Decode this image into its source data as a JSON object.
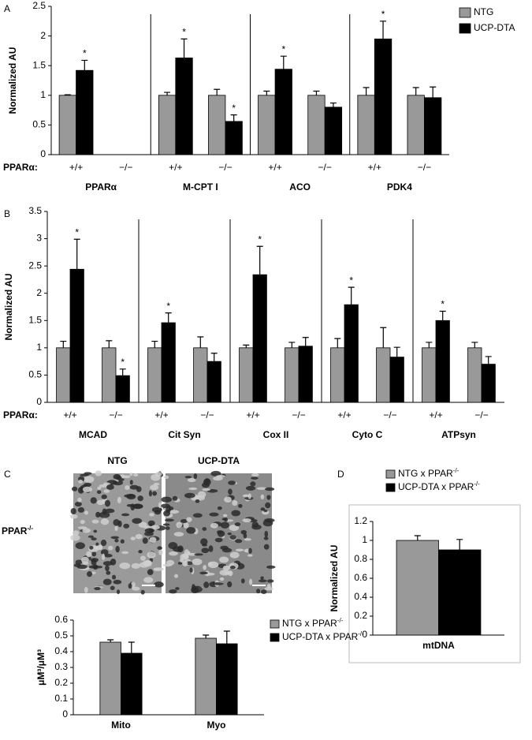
{
  "chart_data": [
    {
      "type": "bar",
      "panel": "A",
      "ylabel": "Normalized AU",
      "ylim": [
        0,
        2.5
      ],
      "yticks": [
        0,
        0.5,
        1,
        1.5,
        2,
        2.5
      ],
      "xlabel_prefix": "PPARα:",
      "categories": [
        "+/+",
        "−/−",
        "+/+",
        "−/−",
        "+/+",
        "−/−",
        "+/+",
        "−/−"
      ],
      "groups": [
        "PPARα",
        "M-CPT I",
        "ACO",
        "PDK4"
      ],
      "legend": "upper right",
      "series": [
        {
          "name": "NTG",
          "color": "#999999",
          "values": [
            1.0,
            null,
            1.0,
            1.0,
            1.0,
            1.0,
            1.0,
            1.0
          ],
          "errors": [
            0.01,
            null,
            0.05,
            0.1,
            0.07,
            0.07,
            0.13,
            0.13
          ],
          "annotations": [
            null,
            null,
            null,
            null,
            null,
            null,
            null,
            null
          ]
        },
        {
          "name": "UCP-DTA",
          "color": "#000000",
          "values": [
            1.42,
            null,
            1.63,
            0.56,
            1.44,
            0.8,
            1.95,
            0.96
          ],
          "errors": [
            0.17,
            null,
            0.32,
            0.11,
            0.22,
            0.07,
            0.3,
            0.18
          ],
          "annotations": [
            "*",
            null,
            "*",
            "*",
            "*",
            null,
            "*",
            null
          ]
        }
      ]
    },
    {
      "type": "bar",
      "panel": "B",
      "ylabel": "Normalized AU",
      "ylim": [
        0,
        3.5
      ],
      "yticks": [
        0,
        0.5,
        1,
        1.5,
        2,
        2.5,
        3,
        3.5
      ],
      "xlabel_prefix": "PPARα:",
      "categories": [
        "+/+",
        "−/−",
        "+/+",
        "−/−",
        "+/+",
        "−/−",
        "+/+",
        "−/−",
        "+/+",
        "−/−"
      ],
      "groups": [
        "MCAD",
        "Cit Syn",
        "Cox II",
        "Cyto C",
        "ATPsyn"
      ],
      "series": [
        {
          "name": "NTG",
          "color": "#999999",
          "values": [
            1.0,
            1.0,
            1.0,
            1.0,
            1.0,
            1.0,
            1.0,
            1.0,
            1.0,
            1.0
          ],
          "errors": [
            0.12,
            0.13,
            0.12,
            0.2,
            0.05,
            0.1,
            0.17,
            0.37,
            0.1,
            0.1
          ],
          "annotations": [
            null,
            null,
            null,
            null,
            null,
            null,
            null,
            null,
            null,
            null
          ]
        },
        {
          "name": "UCP-DTA",
          "color": "#000000",
          "values": [
            2.44,
            0.49,
            1.46,
            0.75,
            2.34,
            1.03,
            1.79,
            0.83,
            1.5,
            0.7
          ],
          "errors": [
            0.55,
            0.12,
            0.18,
            0.15,
            0.52,
            0.16,
            0.32,
            0.18,
            0.17,
            0.14
          ],
          "annotations": [
            "*",
            "*",
            "*",
            null,
            "*",
            null,
            "*",
            null,
            "*",
            null
          ]
        }
      ]
    },
    {
      "type": "bar",
      "panel": "C",
      "column_labels": [
        "NTG",
        "UCP-DTA"
      ],
      "row_label": "PPAR",
      "row_label_sup": "-/-",
      "ylabel": "μM³/μM³",
      "ylim": [
        0,
        0.6
      ],
      "yticks": [
        0,
        0.1,
        0.2,
        0.3,
        0.4,
        0.5,
        0.6
      ],
      "categories": [
        "Mito",
        "Myo"
      ],
      "legend": "right",
      "series": [
        {
          "name": "NTG x PPAR",
          "name_sup": "-/-",
          "color": "#999999",
          "values": [
            0.46,
            0.485
          ],
          "errors": [
            0.015,
            0.02
          ]
        },
        {
          "name": "UCP-DTA x PPAR",
          "name_sup": "-/-",
          "color": "#000000",
          "values": [
            0.39,
            0.45
          ],
          "errors": [
            0.07,
            0.08
          ]
        }
      ]
    },
    {
      "type": "bar",
      "panel": "D",
      "ylabel": "Normalized AU",
      "ylim": [
        0,
        1.2
      ],
      "yticks": [
        0,
        0.2,
        0.4,
        0.6,
        0.8,
        1,
        1.2
      ],
      "categories": [
        "mtDNA"
      ],
      "legend": "upper center",
      "series": [
        {
          "name": "NTG x PPAR",
          "name_sup": "-/-",
          "color": "#999999",
          "values": [
            1.0
          ],
          "errors": [
            0.05
          ]
        },
        {
          "name": "UCP-DTA x PPAR",
          "name_sup": "-/-",
          "color": "#000000",
          "values": [
            0.9
          ],
          "errors": [
            0.11
          ]
        }
      ]
    }
  ]
}
